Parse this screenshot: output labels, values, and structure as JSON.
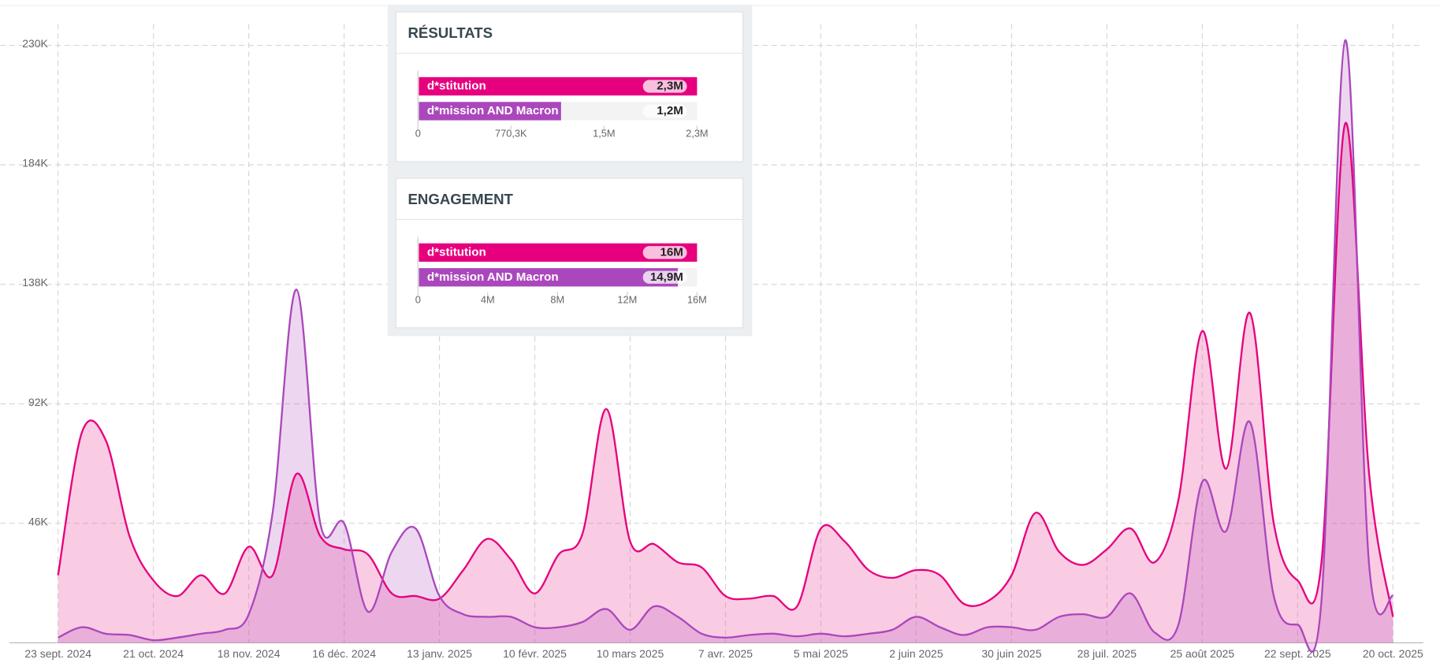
{
  "chart_data": [
    {
      "type": "area",
      "categories": [
        "23 sept. 2024",
        null,
        null,
        null,
        "21 oct. 2024",
        null,
        null,
        null,
        "18 nov. 2024",
        null,
        null,
        null,
        "16 déc. 2024",
        null,
        null,
        null,
        "13 janv. 2025",
        null,
        null,
        null,
        "10 févr. 2025",
        null,
        null,
        null,
        "10 mars 2025",
        null,
        null,
        null,
        "7 avr. 2025",
        null,
        null,
        null,
        "5 mai 2025",
        null,
        null,
        null,
        "2 juin 2025",
        null,
        null,
        null,
        "30 juin 2025",
        null,
        null,
        null,
        "28 juil. 2025",
        null,
        null,
        null,
        "25 août 2025",
        null,
        null,
        null,
        "22 sept. 2025",
        null,
        null,
        null,
        "20 oct. 2025"
      ],
      "series": [
        {
          "name": "d*stitution",
          "color": "#e6007e",
          "values": [
            26000,
            81000,
            78000,
            41000,
            24000,
            18000,
            26000,
            19000,
            37000,
            26000,
            65000,
            41000,
            36000,
            34000,
            19000,
            18000,
            17000,
            28000,
            40000,
            32000,
            19000,
            34000,
            42000,
            90000,
            39000,
            38000,
            31000,
            29000,
            18000,
            17000,
            18000,
            14000,
            44000,
            39000,
            28000,
            25000,
            28000,
            26000,
            15000,
            16000,
            26000,
            50000,
            35000,
            30000,
            36000,
            44000,
            31000,
            55000,
            120000,
            67000,
            127000,
            46000,
            24000,
            31000,
            200000,
            65000,
            10000
          ]
        },
        {
          "name": "d*mission AND Macron",
          "color": "#ab47bc",
          "values": [
            2000,
            6000,
            3500,
            3000,
            1000,
            2000,
            3500,
            5000,
            11000,
            50000,
            136000,
            46000,
            46000,
            12000,
            35000,
            44000,
            18000,
            11000,
            10000,
            10000,
            6000,
            6000,
            8000,
            13000,
            5000,
            14000,
            10000,
            3500,
            2000,
            3000,
            3500,
            2500,
            3500,
            2500,
            3500,
            5000,
            10000,
            6000,
            3000,
            6000,
            6000,
            5000,
            10000,
            11000,
            10000,
            19000,
            4000,
            7000,
            62000,
            43000,
            85000,
            18000,
            7000,
            16000,
            232000,
            30000,
            18000
          ]
        }
      ],
      "ylim": [
        0,
        245000
      ],
      "yticks": [
        {
          "value": 46000,
          "label": "46K"
        },
        {
          "value": 92000,
          "label": "92K"
        },
        {
          "value": 138000,
          "label": "138K"
        },
        {
          "value": 184000,
          "label": "184K"
        },
        {
          "value": 230000,
          "label": "230K"
        }
      ],
      "grid": true
    },
    {
      "type": "hbar",
      "title": "RÉSULTATS",
      "categories": [
        "d*stitution",
        "d*mission AND Macron"
      ],
      "values": [
        2310900,
        1185000
      ],
      "value_labels": [
        "2,3M",
        "1,2M"
      ],
      "colors": [
        "#e6007e",
        "#ab47bc"
      ],
      "xlim": [
        0,
        2310900
      ],
      "xticks": [
        0,
        {
          "value": 770300,
          "label": "770,3K"
        },
        {
          "value": 1540600,
          "label": "1,5M"
        },
        {
          "value": 2310900,
          "label": "2,3M"
        }
      ]
    },
    {
      "type": "hbar",
      "title": "ENGAGEMENT",
      "categories": [
        "d*stitution",
        "d*mission AND Macron"
      ],
      "values": [
        16000000,
        14900000
      ],
      "value_labels": [
        "16M",
        "14,9M"
      ],
      "colors": [
        "#e6007e",
        "#ab47bc"
      ],
      "xlim": [
        0,
        16000000
      ],
      "xticks": [
        0,
        {
          "value": 4000000,
          "label": "4M"
        },
        {
          "value": 8000000,
          "label": "8M"
        },
        {
          "value": 12000000,
          "label": "12M"
        },
        {
          "value": 16000000,
          "label": "16M"
        }
      ]
    }
  ]
}
